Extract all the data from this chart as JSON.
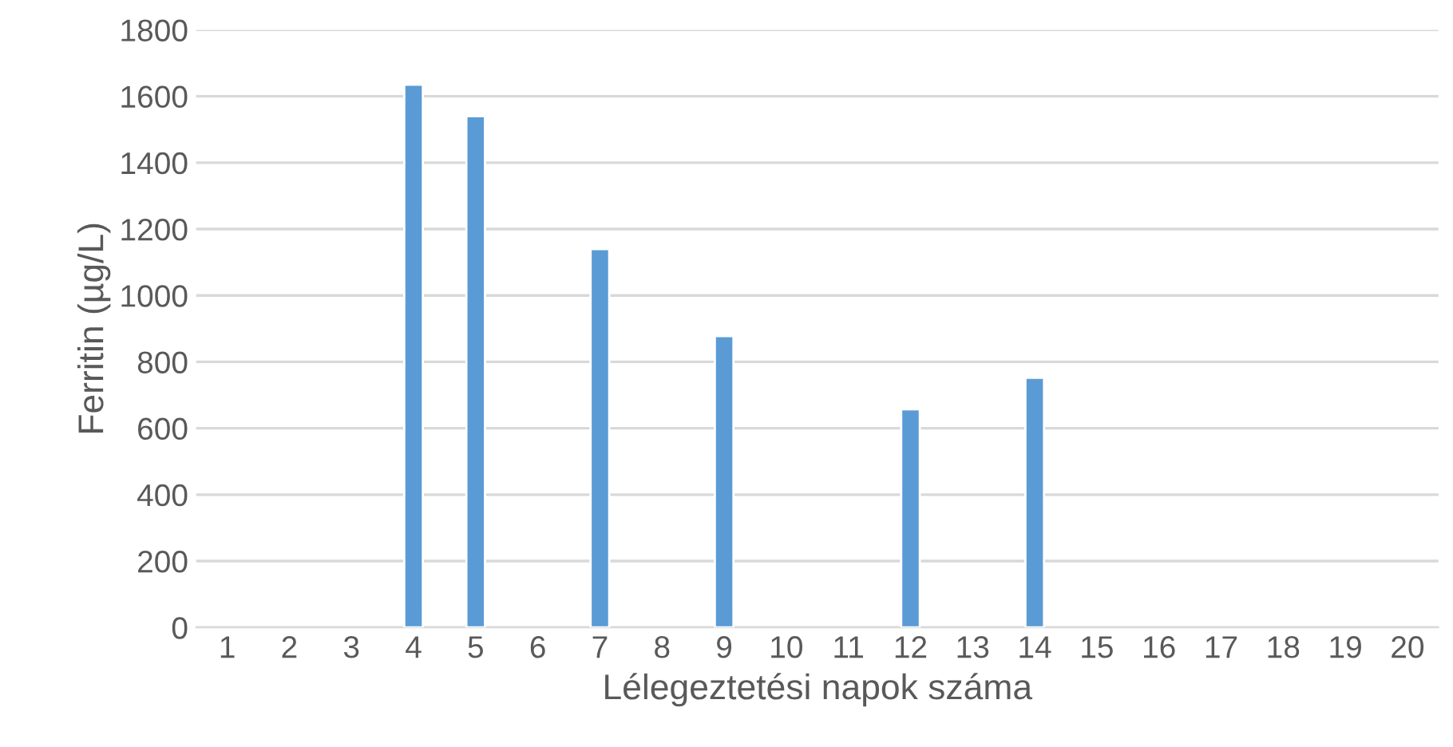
{
  "chart_data": {
    "type": "bar",
    "xlabel": "Lélegeztetési napok száma",
    "ylabel": "Ferritin (µg/L)",
    "categories": [
      "1",
      "2",
      "3",
      "4",
      "5",
      "6",
      "7",
      "8",
      "9",
      "10",
      "11",
      "12",
      "13",
      "14",
      "15",
      "16",
      "17",
      "18",
      "19",
      "20"
    ],
    "values": [
      null,
      null,
      null,
      1635,
      1540,
      null,
      1140,
      null,
      878,
      null,
      null,
      657,
      null,
      752,
      null,
      null,
      null,
      null,
      null,
      null
    ],
    "color": "#5b9bd5",
    "ylim": [
      0,
      1800
    ],
    "yticks": [
      0,
      200,
      400,
      600,
      800,
      1000,
      1200,
      1400,
      1600,
      1800
    ],
    "grid": "y"
  }
}
